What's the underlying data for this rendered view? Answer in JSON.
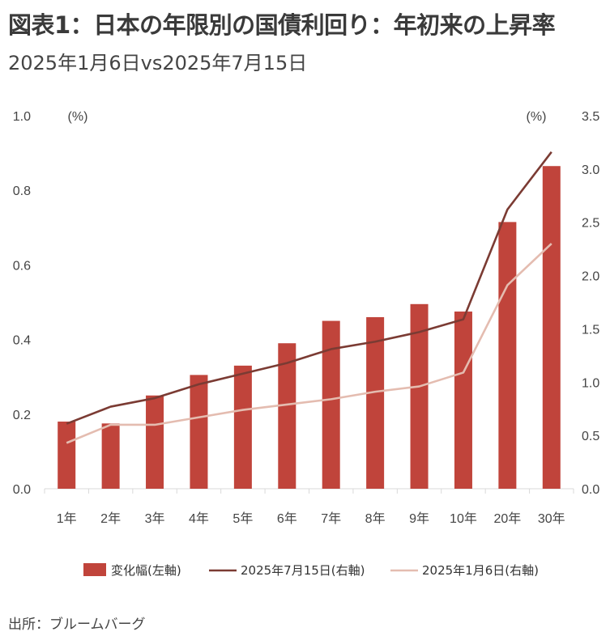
{
  "title": "図表1：日本の年限別の国債利回り：年初来の上昇率",
  "subtitle": "2025年1月6日vs2025年7月15日",
  "source": "出所：ブルームバーグ",
  "chart_data": {
    "type": "bar+line",
    "categories": [
      "1年",
      "2年",
      "3年",
      "4年",
      "5年",
      "6年",
      "7年",
      "8年",
      "9年",
      "10年",
      "20年",
      "30年"
    ],
    "left_axis": {
      "unit_label": "(%)",
      "ylim": [
        0,
        1.0
      ],
      "ticks": [
        "0.0",
        "0.2",
        "0.4",
        "0.6",
        "0.8",
        "1.0"
      ]
    },
    "right_axis": {
      "unit_label": "(%)",
      "ylim": [
        0,
        3.5
      ],
      "ticks": [
        "0.0",
        "0.5",
        "1.0",
        "1.5",
        "2.0",
        "2.5",
        "3.0",
        "3.5"
      ]
    },
    "series": [
      {
        "name": "変化幅(左軸)",
        "type": "bar",
        "axis": "left",
        "color": "#c0443b",
        "values": [
          0.18,
          0.175,
          0.25,
          0.305,
          0.33,
          0.39,
          0.45,
          0.46,
          0.495,
          0.475,
          0.715,
          0.865
        ]
      },
      {
        "name": "2025年7月15日(右軸)",
        "type": "line",
        "axis": "right",
        "color": "#7b3b33",
        "values": [
          0.61,
          0.77,
          0.85,
          0.98,
          1.08,
          1.18,
          1.31,
          1.38,
          1.47,
          1.59,
          2.62,
          3.16
        ]
      },
      {
        "name": "2025年1月6日(右軸)",
        "type": "line",
        "axis": "right",
        "color": "#e4bcb0",
        "values": [
          0.43,
          0.6,
          0.6,
          0.67,
          0.74,
          0.79,
          0.84,
          0.91,
          0.96,
          1.09,
          1.91,
          2.3
        ]
      }
    ],
    "grid": false,
    "legend_position": "bottom"
  }
}
